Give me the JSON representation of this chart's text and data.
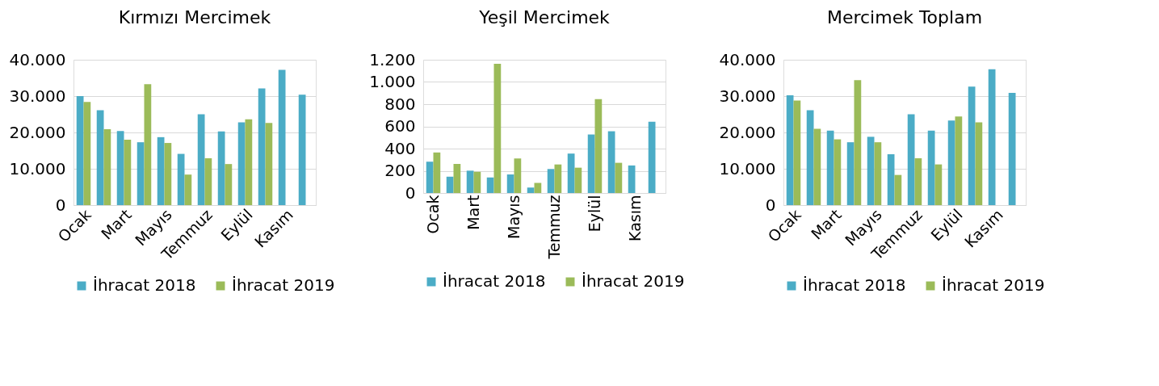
{
  "chart_data": [
    {
      "type": "bar",
      "title": "Kırmızı Mercimek",
      "categories": [
        "Ocak",
        null,
        "Mart",
        null,
        "Mayıs",
        null,
        "Temmuz",
        null,
        "Eylül",
        null,
        "Kasım",
        null
      ],
      "series": [
        {
          "name": "İhracat 2018",
          "color": "#4bacc6",
          "values": [
            30000,
            26100,
            20400,
            17300,
            18700,
            14100,
            25000,
            20300,
            22800,
            32100,
            37200,
            30400
          ]
        },
        {
          "name": "İhracat 2019",
          "color": "#9bbb59",
          "values": [
            28400,
            20900,
            18000,
            33300,
            17100,
            8400,
            12900,
            11300,
            23600,
            22600,
            null,
            null
          ]
        }
      ],
      "ylim": [
        0,
        40000
      ],
      "yticks": [
        {
          "value": 0,
          "label": "0"
        },
        {
          "value": 10000,
          "label": "10.000"
        },
        {
          "value": 20000,
          "label": "20.000"
        },
        {
          "value": 30000,
          "label": "30.000"
        },
        {
          "value": 40000,
          "label": "40.000"
        }
      ],
      "grid": "y",
      "legend": "bottom"
    },
    {
      "type": "bar",
      "title": "Yeşil Mercimek",
      "categories": [
        "Ocak",
        null,
        "Mart",
        null,
        "Mayıs",
        null,
        "Temmuz",
        null,
        "Eylül",
        null,
        "Kasım",
        null
      ],
      "series": [
        {
          "name": "İhracat 2018",
          "color": "#4bacc6",
          "values": [
            282,
            147,
            201,
            140,
            167,
            49,
            216,
            355,
            527,
            556,
            248,
            642
          ]
        },
        {
          "name": "İhracat 2019",
          "color": "#9bbb59",
          "values": [
            365,
            262,
            191,
            1164,
            311,
            91,
            257,
            228,
            846,
            272,
            null,
            null
          ]
        }
      ],
      "ylim": [
        0,
        1200
      ],
      "yticks": [
        {
          "value": 0,
          "label": "0"
        },
        200,
        400,
        600,
        800,
        {
          "value": 1000,
          "label": "1.000"
        },
        {
          "value": 1200,
          "label": "1.200"
        }
      ],
      "grid": "y",
      "legend": "bottom"
    },
    {
      "type": "bar",
      "title": "Mercimek Toplam",
      "categories": [
        "Ocak",
        null,
        "Mart",
        null,
        "Mayıs",
        null,
        "Temmuz",
        null,
        "Eylül",
        null,
        "Kasım",
        null
      ],
      "series": [
        {
          "name": "İhracat 2018",
          "color": "#4bacc6",
          "values": [
            30200,
            26100,
            20500,
            17300,
            18800,
            14000,
            25000,
            20500,
            23300,
            32600,
            37400,
            30900
          ]
        },
        {
          "name": "İhracat 2019",
          "color": "#9bbb59",
          "values": [
            28800,
            21000,
            18100,
            34400,
            17300,
            8300,
            12900,
            11200,
            24400,
            22800,
            null,
            null
          ]
        }
      ],
      "ylim": [
        0,
        40000
      ],
      "yticks": [
        {
          "value": 0,
          "label": "0"
        },
        {
          "value": 10000,
          "label": "10.000"
        },
        {
          "value": 20000,
          "label": "20.000"
        },
        {
          "value": 30000,
          "label": "30.000"
        },
        {
          "value": 40000,
          "label": "40.000"
        }
      ],
      "grid": "y",
      "legend": "bottom"
    }
  ]
}
